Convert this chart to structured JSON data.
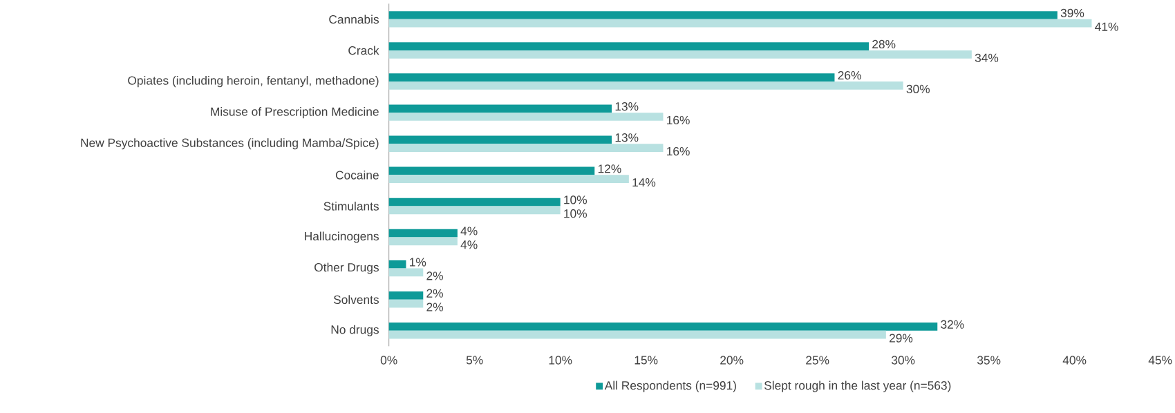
{
  "chart_data": {
    "type": "bar",
    "orientation": "horizontal",
    "categories": [
      "Cannabis",
      "Crack",
      "Opiates (including heroin, fentanyl, methadone)",
      "Misuse of Prescription Medicine",
      "New Psychoactive Substances (including Mamba/Spice)",
      "Cocaine",
      "Stimulants",
      "Hallucinogens",
      "Other Drugs",
      "Solvents",
      "No drugs"
    ],
    "series": [
      {
        "name": "All Respondents (n=991)",
        "color": "#0e9a98",
        "values": [
          39,
          28,
          26,
          13,
          13,
          12,
          10,
          4,
          1,
          2,
          32
        ],
        "value_labels": [
          "39%",
          "28%",
          "26%",
          "13%",
          "13%",
          "12%",
          "10%",
          "4%",
          "1%",
          "2%",
          "32%"
        ]
      },
      {
        "name": "Slept rough in the last year (n=563)",
        "color": "#b8e1e1",
        "values": [
          41,
          34,
          30,
          16,
          16,
          14,
          10,
          4,
          2,
          2,
          29
        ],
        "value_labels": [
          "41%",
          "34%",
          "30%",
          "16%",
          "16%",
          "14%",
          "10%",
          "4%",
          "2%",
          "2%",
          "29%"
        ]
      }
    ],
    "xlim": [
      0,
      45
    ],
    "xticks": [
      {
        "value": 0,
        "label": "0%"
      },
      {
        "value": 5,
        "label": "5%"
      },
      {
        "value": 10,
        "label": "10%"
      },
      {
        "value": 15,
        "label": "15%"
      },
      {
        "value": 20,
        "label": "20%"
      },
      {
        "value": 25,
        "label": "25%"
      },
      {
        "value": 30,
        "label": "30%"
      },
      {
        "value": 35,
        "label": "35%"
      },
      {
        "value": 40,
        "label": "40%"
      },
      {
        "value": 45,
        "label": "45%"
      }
    ],
    "legend": "bottom"
  }
}
